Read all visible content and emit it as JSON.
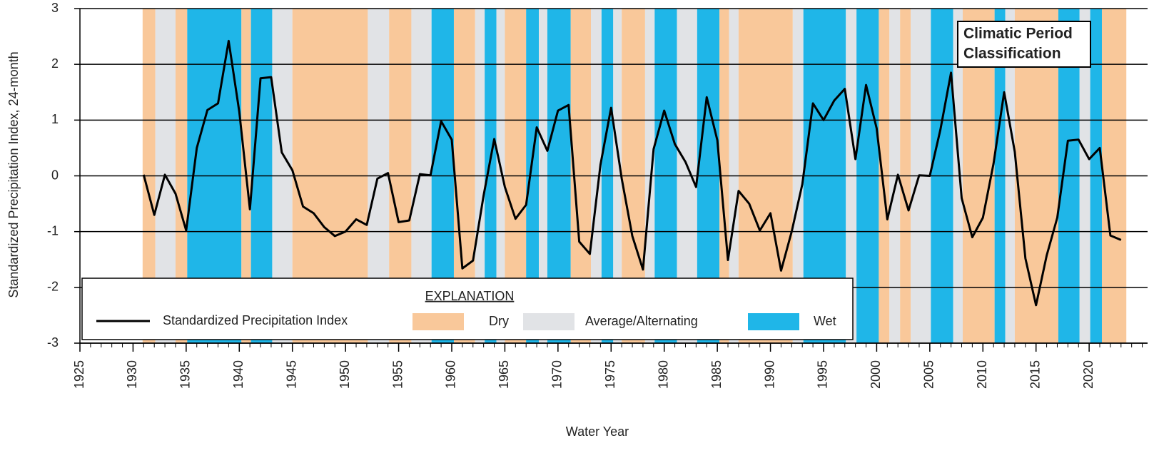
{
  "chart_data": {
    "type": "line",
    "y_label": "Standardized Precipitation Index, 24-month",
    "x_label": "Water Year",
    "box_title": [
      "Climatic Period",
      "Classification"
    ],
    "legend_title": "EXPLANATION",
    "series": [
      {
        "name": "Standardized Precipitation Index",
        "color": "#000000",
        "x": [
          1931,
          1932,
          1933,
          1934,
          1935,
          1936,
          1937,
          1938,
          1939,
          1940,
          1941,
          1942,
          1943,
          1944,
          1945,
          1946,
          1947,
          1948,
          1949,
          1950,
          1951,
          1952,
          1953,
          1954,
          1955,
          1956,
          1957,
          1958,
          1959,
          1960,
          1961,
          1962,
          1963,
          1964,
          1965,
          1966,
          1967,
          1968,
          1969,
          1970,
          1971,
          1972,
          1973,
          1974,
          1975,
          1976,
          1977,
          1978,
          1979,
          1980,
          1981,
          1982,
          1983,
          1984,
          1985,
          1986,
          1987,
          1988,
          1989,
          1990,
          1991,
          1992,
          1993,
          1994,
          1995,
          1996,
          1997,
          1998,
          1999,
          2000,
          2001,
          2002,
          2003,
          2004,
          2005,
          2006,
          2007,
          2008,
          2009,
          2010,
          2011,
          2012,
          2013,
          2014,
          2015,
          2016,
          2017,
          2018,
          2019,
          2020,
          2021,
          2022,
          2023
        ],
        "values": [
          0.02,
          -0.7,
          0.02,
          -0.32,
          -0.98,
          0.5,
          1.18,
          1.3,
          2.42,
          1.15,
          -0.6,
          1.75,
          1.77,
          0.42,
          0.1,
          -0.55,
          -0.67,
          -0.92,
          -1.08,
          -1.0,
          -0.78,
          -0.88,
          -0.05,
          0.05,
          -0.83,
          -0.8,
          0.03,
          0.01,
          0.98,
          0.65,
          -1.66,
          -1.52,
          -0.35,
          0.66,
          -0.2,
          -0.77,
          -0.52,
          0.87,
          0.45,
          1.17,
          1.27,
          -1.18,
          -1.4,
          0.2,
          1.22,
          -0.05,
          -1.08,
          -1.68,
          0.48,
          1.17,
          0.57,
          0.25,
          -0.2,
          1.41,
          0.64,
          -1.51,
          -0.27,
          -0.5,
          -0.98,
          -0.67,
          -1.7,
          -1.0,
          -0.15,
          1.3,
          1.0,
          1.35,
          1.56,
          0.3,
          1.63,
          0.85,
          -0.78,
          0.02,
          -0.62,
          0.01,
          0.0,
          0.83,
          1.85,
          -0.4,
          -1.1,
          -0.75,
          0.22,
          1.5,
          0.43,
          -1.48,
          -2.32,
          -1.43,
          -0.75,
          0.63,
          0.65,
          0.3,
          0.5,
          -1.07,
          -1.15
        ]
      }
    ],
    "classes": [
      {
        "name": "Dry",
        "color": "#f9c89a"
      },
      {
        "name": "Average/Alternating",
        "color": "#e1e3e6"
      },
      {
        "name": "Wet",
        "color": "#1fb6e8"
      }
    ],
    "periods": [
      [
        1930.9,
        1932.1,
        0
      ],
      [
        1932.1,
        1934.0,
        1
      ],
      [
        1934.0,
        1935.1,
        0
      ],
      [
        1935.1,
        1940.2,
        2
      ],
      [
        1940.2,
        1941.1,
        0
      ],
      [
        1941.1,
        1943.1,
        2
      ],
      [
        1943.1,
        1945.0,
        1
      ],
      [
        1945.0,
        1952.1,
        0
      ],
      [
        1952.1,
        1954.1,
        1
      ],
      [
        1954.1,
        1956.2,
        0
      ],
      [
        1956.2,
        1958.1,
        1
      ],
      [
        1958.1,
        1960.2,
        2
      ],
      [
        1960.2,
        1962.2,
        0
      ],
      [
        1962.2,
        1963.1,
        1
      ],
      [
        1963.1,
        1964.2,
        2
      ],
      [
        1964.2,
        1965.0,
        1
      ],
      [
        1965.0,
        1967.0,
        0
      ],
      [
        1967.0,
        1968.2,
        2
      ],
      [
        1968.2,
        1969.0,
        1
      ],
      [
        1969.0,
        1971.2,
        2
      ],
      [
        1971.2,
        1973.1,
        0
      ],
      [
        1973.1,
        1974.1,
        1
      ],
      [
        1974.1,
        1975.2,
        2
      ],
      [
        1975.2,
        1976.0,
        1
      ],
      [
        1976.0,
        1978.2,
        0
      ],
      [
        1978.2,
        1979.1,
        1
      ],
      [
        1979.1,
        1981.2,
        2
      ],
      [
        1981.2,
        1983.1,
        1
      ],
      [
        1983.1,
        1985.2,
        2
      ],
      [
        1985.2,
        1986.1,
        0
      ],
      [
        1986.1,
        1987.0,
        1
      ],
      [
        1987.0,
        1992.1,
        0
      ],
      [
        1992.1,
        1993.1,
        1
      ],
      [
        1993.1,
        1997.1,
        2
      ],
      [
        1997.1,
        1998.1,
        1
      ],
      [
        1998.1,
        2000.2,
        2
      ],
      [
        2000.2,
        2001.2,
        0
      ],
      [
        2001.2,
        2002.2,
        1
      ],
      [
        2002.2,
        2003.2,
        0
      ],
      [
        2003.2,
        2005.1,
        1
      ],
      [
        2005.1,
        2007.2,
        2
      ],
      [
        2007.2,
        2008.1,
        1
      ],
      [
        2008.1,
        2011.1,
        0
      ],
      [
        2011.1,
        2012.1,
        2
      ],
      [
        2012.1,
        2013.0,
        1
      ],
      [
        2013.0,
        2017.1,
        0
      ],
      [
        2017.1,
        2019.1,
        2
      ],
      [
        2019.1,
        2020.1,
        1
      ],
      [
        2020.1,
        2021.2,
        2
      ],
      [
        2021.2,
        2023.5,
        0
      ]
    ],
    "xlim": [
      1925,
      2025.5
    ],
    "xticks": [
      1925,
      1930,
      1935,
      1940,
      1945,
      1950,
      1955,
      1960,
      1965,
      1970,
      1975,
      1980,
      1985,
      1990,
      1995,
      2000,
      2005,
      2010,
      2015,
      2020
    ],
    "ylim": [
      -3,
      3
    ],
    "yticks": [
      -3,
      -2,
      -1,
      0,
      1,
      2,
      3
    ],
    "grid": true
  }
}
